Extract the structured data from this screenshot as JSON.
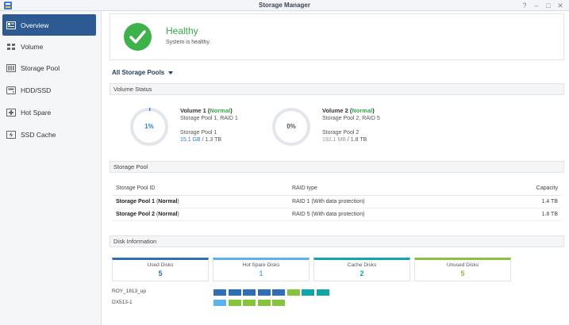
{
  "window": {
    "title": "Storage Manager",
    "help": "?",
    "minimize": "–",
    "maximize": "□",
    "close": "✕"
  },
  "sidebar": {
    "items": [
      {
        "label": "Overview",
        "icon": "overview-icon",
        "active": true
      },
      {
        "label": "Volume",
        "icon": "volume-icon"
      },
      {
        "label": "Storage Pool",
        "icon": "storage-pool-icon"
      },
      {
        "label": "HDD/SSD",
        "icon": "hdd-icon"
      },
      {
        "label": "Hot Spare",
        "icon": "hot-spare-icon"
      },
      {
        "label": "SSD Cache",
        "icon": "ssd-cache-icon"
      }
    ]
  },
  "health": {
    "title": "Healthy",
    "subtitle": "System is healthy.",
    "color": "#3db24b"
  },
  "pools_dropdown": "All Storage Pools",
  "volume_status": {
    "heading": "Volume Status",
    "volumes": [
      {
        "percent": "1%",
        "usage": 0.01,
        "name": "Volume 1",
        "status": "Normal",
        "desc": "Storage Pool 1, RAID 1",
        "pool": "Storage Pool 1",
        "used": "15.1 GB",
        "total": "/ 1.3 TB"
      },
      {
        "percent": "0%",
        "usage": 0.0,
        "name": "Volume 2",
        "status": "Normal",
        "desc": "Storage Pool 2, RAID 5",
        "pool": "Storage Pool 2",
        "used": "192.1 MB",
        "total": "/ 1.8 TB"
      }
    ]
  },
  "storage_pool": {
    "heading": "Storage Pool",
    "columns": [
      "Storage Pool ID",
      "RAID type",
      "Capacity"
    ],
    "rows": [
      {
        "name": "Storage Pool 1",
        "status": "Normal",
        "raid": "RAID 1 (With data protection)",
        "capacity": "1.4 TB"
      },
      {
        "name": "Storage Pool 2",
        "status": "Normal",
        "raid": "RAID 5 (With data protection)",
        "capacity": "1.8 TB"
      }
    ]
  },
  "disk_info": {
    "heading": "Disk Information",
    "cards": [
      {
        "label": "Used Disks",
        "value": "5",
        "color": "#2f6fb8"
      },
      {
        "label": "Hot Spare Disks",
        "value": "1",
        "color": "#5ab3ee"
      },
      {
        "label": "Cache Disks",
        "value": "2",
        "color": "#10a5a6"
      },
      {
        "label": "Unused Disks",
        "value": "5",
        "color": "#86c440"
      }
    ],
    "enclosures": [
      {
        "name": "ROY_1813_up",
        "slots": [
          "#2f6fb8",
          "#2f6fb8",
          "#2f6fb8",
          "#2f6fb8",
          "#2f6fb8",
          "#86c440",
          "#10a5a6",
          "#10a5a6"
        ]
      },
      {
        "name": "DX513-1",
        "slots": [
          "#5ab3ee",
          "#86c440",
          "#86c440",
          "#86c440",
          "#86c440"
        ]
      }
    ]
  }
}
